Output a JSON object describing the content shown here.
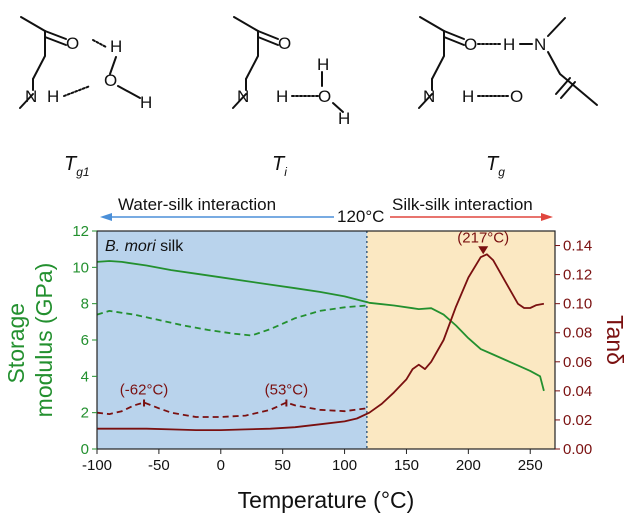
{
  "structures": {
    "labels": [
      "T",
      "T",
      "T"
    ],
    "subscripts": [
      "g1",
      "i",
      "g"
    ],
    "atoms": {
      "O": "O",
      "H": "H",
      "N": "N"
    }
  },
  "header": {
    "left_text": "Water-silk interaction",
    "center_text": "120°C",
    "right_text": "Silk-silk interaction"
  },
  "colors": {
    "water_region": "#b9d3ec",
    "silk_region": "#fbe8c2",
    "modulus": "#23902f",
    "tan": "#7a1010",
    "arrow_left": "#4b8fd8",
    "arrow_right": "#e0463e"
  },
  "chart_data": {
    "type": "line",
    "annotation_text": "B. mori silk",
    "xlabel": "Temperature (°C)",
    "ylabel_left_lines": [
      "Storage",
      "modulus (GPa)"
    ],
    "ylabel_right": "Tanδ",
    "xlim": [
      -100,
      270
    ],
    "ylim_left": [
      0,
      12
    ],
    "ylim_right": [
      0,
      0.15
    ],
    "xticks": [
      -100,
      -50,
      0,
      50,
      100,
      150,
      200,
      250
    ],
    "yticks_left": [
      0,
      2,
      4,
      6,
      8,
      10,
      12
    ],
    "yticks_right": [
      "0.00",
      "0.02",
      "0.04",
      "0.06",
      "0.08",
      "0.10",
      "0.12",
      "0.14"
    ],
    "regions": [
      {
        "x_from": -100,
        "x_to": 118,
        "color_key": "water_region"
      },
      {
        "x_from": 118,
        "x_to": 270,
        "color_key": "silk_region"
      }
    ],
    "divider_x": 118,
    "series": [
      {
        "axis": "left",
        "style": "solid",
        "color_key": "modulus",
        "x": [
          -100,
          -90,
          -80,
          -60,
          -40,
          -20,
          0,
          20,
          40,
          60,
          80,
          100,
          120,
          140,
          155,
          160,
          170,
          180,
          190,
          200,
          210,
          220,
          230,
          240,
          250,
          258,
          261
        ],
        "y": [
          10.3,
          10.35,
          10.3,
          10.1,
          9.85,
          9.65,
          9.45,
          9.25,
          9.05,
          8.85,
          8.65,
          8.4,
          8.05,
          7.9,
          7.75,
          7.7,
          7.75,
          7.4,
          6.8,
          6.1,
          5.5,
          5.2,
          4.9,
          4.6,
          4.3,
          4.0,
          3.2
        ]
      },
      {
        "axis": "left",
        "style": "dashed",
        "color_key": "modulus",
        "x": [
          -100,
          -90,
          -70,
          -50,
          -30,
          -10,
          10,
          25,
          40,
          60,
          80,
          100,
          118
        ],
        "y": [
          7.4,
          7.6,
          7.4,
          7.1,
          6.8,
          6.55,
          6.35,
          6.25,
          6.6,
          7.2,
          7.6,
          7.8,
          7.9
        ]
      },
      {
        "axis": "right",
        "style": "dashed",
        "color_key": "tan",
        "x": [
          -100,
          -90,
          -80,
          -70,
          -62,
          -50,
          -40,
          -20,
          0,
          20,
          40,
          53,
          60,
          80,
          100,
          118
        ],
        "y": [
          0.025,
          0.024,
          0.026,
          0.03,
          0.032,
          0.028,
          0.025,
          0.022,
          0.022,
          0.023,
          0.027,
          0.032,
          0.03,
          0.027,
          0.026,
          0.028
        ]
      },
      {
        "axis": "right",
        "style": "solid",
        "color_key": "tan",
        "x": [
          -100,
          -80,
          -60,
          -40,
          -20,
          0,
          20,
          40,
          60,
          80,
          100,
          110,
          120,
          130,
          140,
          150,
          155,
          160,
          165,
          170,
          180,
          190,
          200,
          210,
          215,
          220,
          230,
          240,
          245,
          250,
          255,
          261
        ],
        "y": [
          0.014,
          0.014,
          0.014,
          0.0135,
          0.013,
          0.013,
          0.0135,
          0.014,
          0.015,
          0.017,
          0.019,
          0.021,
          0.025,
          0.031,
          0.039,
          0.048,
          0.055,
          0.058,
          0.055,
          0.06,
          0.075,
          0.098,
          0.118,
          0.132,
          0.134,
          0.13,
          0.115,
          0.1,
          0.097,
          0.097,
          0.099,
          0.1
        ]
      }
    ],
    "annotations": [
      {
        "text": "(-62°C)",
        "x": -62,
        "y": 0.032,
        "axis": "right",
        "color_key": "tan",
        "mark": "small"
      },
      {
        "text": "(53°C)",
        "x": 53,
        "y": 0.032,
        "axis": "right",
        "color_key": "tan",
        "mark": "small"
      },
      {
        "text": "(217°C)",
        "x": 212,
        "y": 0.134,
        "axis": "right",
        "color_key": "tan",
        "mark": "arrow"
      }
    ]
  }
}
